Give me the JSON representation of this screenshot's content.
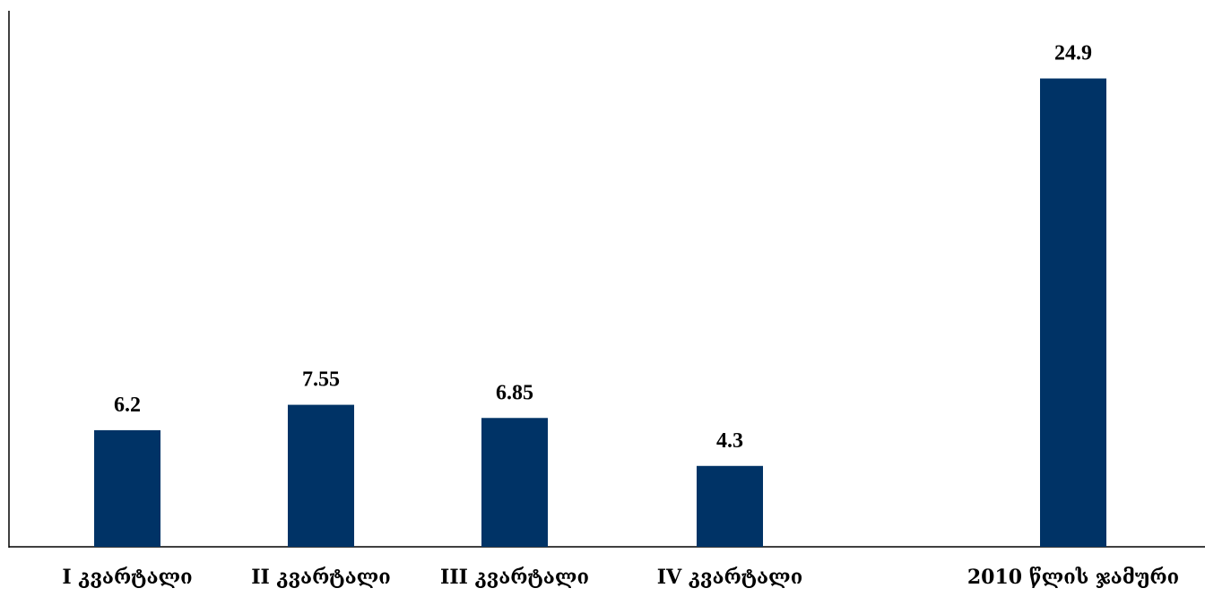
{
  "chart_data": {
    "type": "bar",
    "title": "",
    "xlabel": "",
    "ylabel": "",
    "categories": [
      "I კვარტალი",
      "II კვარტალი",
      "III კვარტალი",
      "IV კვარტალი",
      "2010 წლის ჯამური"
    ],
    "values": [
      6.2,
      7.55,
      6.85,
      4.3,
      24.9
    ],
    "value_labels": [
      "6.2",
      "7.55",
      "6.85",
      "4.3",
      "24.9"
    ],
    "ylim": [
      0,
      28.5
    ],
    "grid": false,
    "legend": "none",
    "bar_color": "#003366"
  }
}
